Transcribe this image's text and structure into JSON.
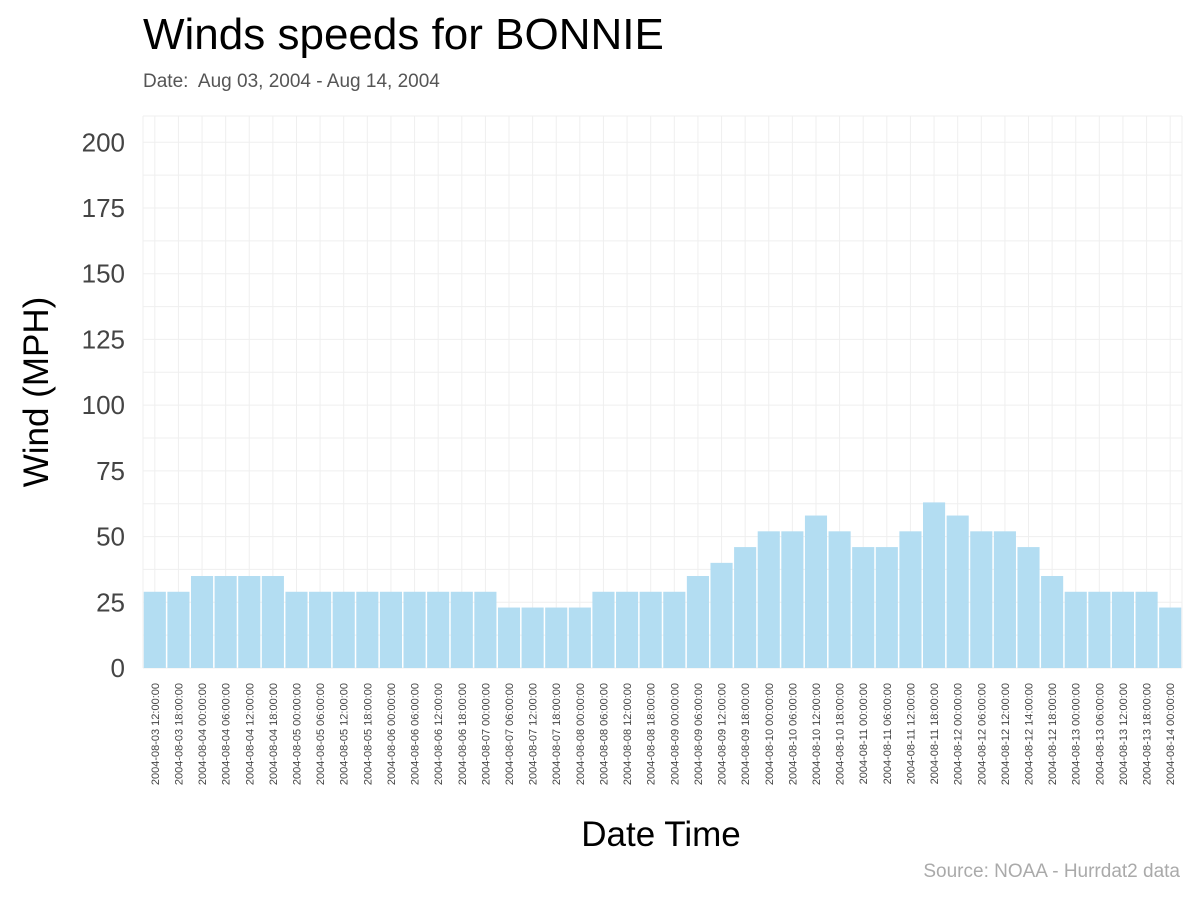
{
  "colors": {
    "bar_fill": "#b3ddf2",
    "grid": "#efefef",
    "tick_text": "#444444",
    "title_text": "#000000",
    "caption_text": "#aaaaaa"
  },
  "chart_data": {
    "type": "bar",
    "title": "Winds speeds for BONNIE",
    "subtitle": "Date:  Aug 03, 2004 - Aug 14, 2004",
    "caption": "Source: NOAA - Hurrdat2 data",
    "xlabel": "Date Time",
    "ylabel": "Wind (MPH)",
    "ylim": [
      0,
      210
    ],
    "yticks": [
      0,
      25,
      50,
      75,
      100,
      125,
      150,
      175,
      200
    ],
    "grid": true,
    "categories": [
      "2004-08-03 12:00:00",
      "2004-08-03 18:00:00",
      "2004-08-04 00:00:00",
      "2004-08-04 06:00:00",
      "2004-08-04 12:00:00",
      "2004-08-04 18:00:00",
      "2004-08-05 00:00:00",
      "2004-08-05 06:00:00",
      "2004-08-05 12:00:00",
      "2004-08-05 18:00:00",
      "2004-08-06 00:00:00",
      "2004-08-06 06:00:00",
      "2004-08-06 12:00:00",
      "2004-08-06 18:00:00",
      "2004-08-07 00:00:00",
      "2004-08-07 06:00:00",
      "2004-08-07 12:00:00",
      "2004-08-07 18:00:00",
      "2004-08-08 00:00:00",
      "2004-08-08 06:00:00",
      "2004-08-08 12:00:00",
      "2004-08-08 18:00:00",
      "2004-08-09 00:00:00",
      "2004-08-09 06:00:00",
      "2004-08-09 12:00:00",
      "2004-08-09 18:00:00",
      "2004-08-10 00:00:00",
      "2004-08-10 06:00:00",
      "2004-08-10 12:00:00",
      "2004-08-10 18:00:00",
      "2004-08-11 00:00:00",
      "2004-08-11 06:00:00",
      "2004-08-11 12:00:00",
      "2004-08-11 18:00:00",
      "2004-08-12 00:00:00",
      "2004-08-12 06:00:00",
      "2004-08-12 12:00:00",
      "2004-08-12 14:00:00",
      "2004-08-12 18:00:00",
      "2004-08-13 00:00:00",
      "2004-08-13 06:00:00",
      "2004-08-13 12:00:00",
      "2004-08-13 18:00:00",
      "2004-08-14 00:00:00"
    ],
    "values": [
      29,
      29,
      35,
      35,
      35,
      35,
      29,
      29,
      29,
      29,
      29,
      29,
      29,
      29,
      29,
      23,
      23,
      23,
      23,
      29,
      29,
      29,
      29,
      35,
      40,
      46,
      52,
      52,
      58,
      52,
      46,
      46,
      52,
      63,
      58,
      52,
      52,
      46,
      35,
      29,
      29,
      29,
      29,
      23
    ]
  }
}
